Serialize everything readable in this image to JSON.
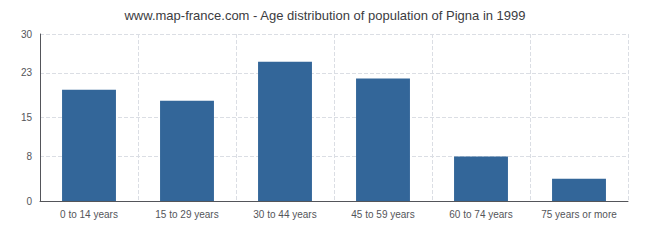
{
  "chart_data": {
    "type": "bar",
    "title": "www.map-france.com - Age distribution of population of Pigna in 1999",
    "categories": [
      "0 to 14 years",
      "15 to 29 years",
      "30 to 44 years",
      "45 to 59 years",
      "60 to 74 years",
      "75 years or more"
    ],
    "values": [
      20,
      18,
      25,
      22,
      8,
      4
    ],
    "color": "#336699",
    "ylim": [
      0,
      30
    ],
    "yticks": [
      0,
      8,
      15,
      23,
      30
    ],
    "grid": true
  }
}
